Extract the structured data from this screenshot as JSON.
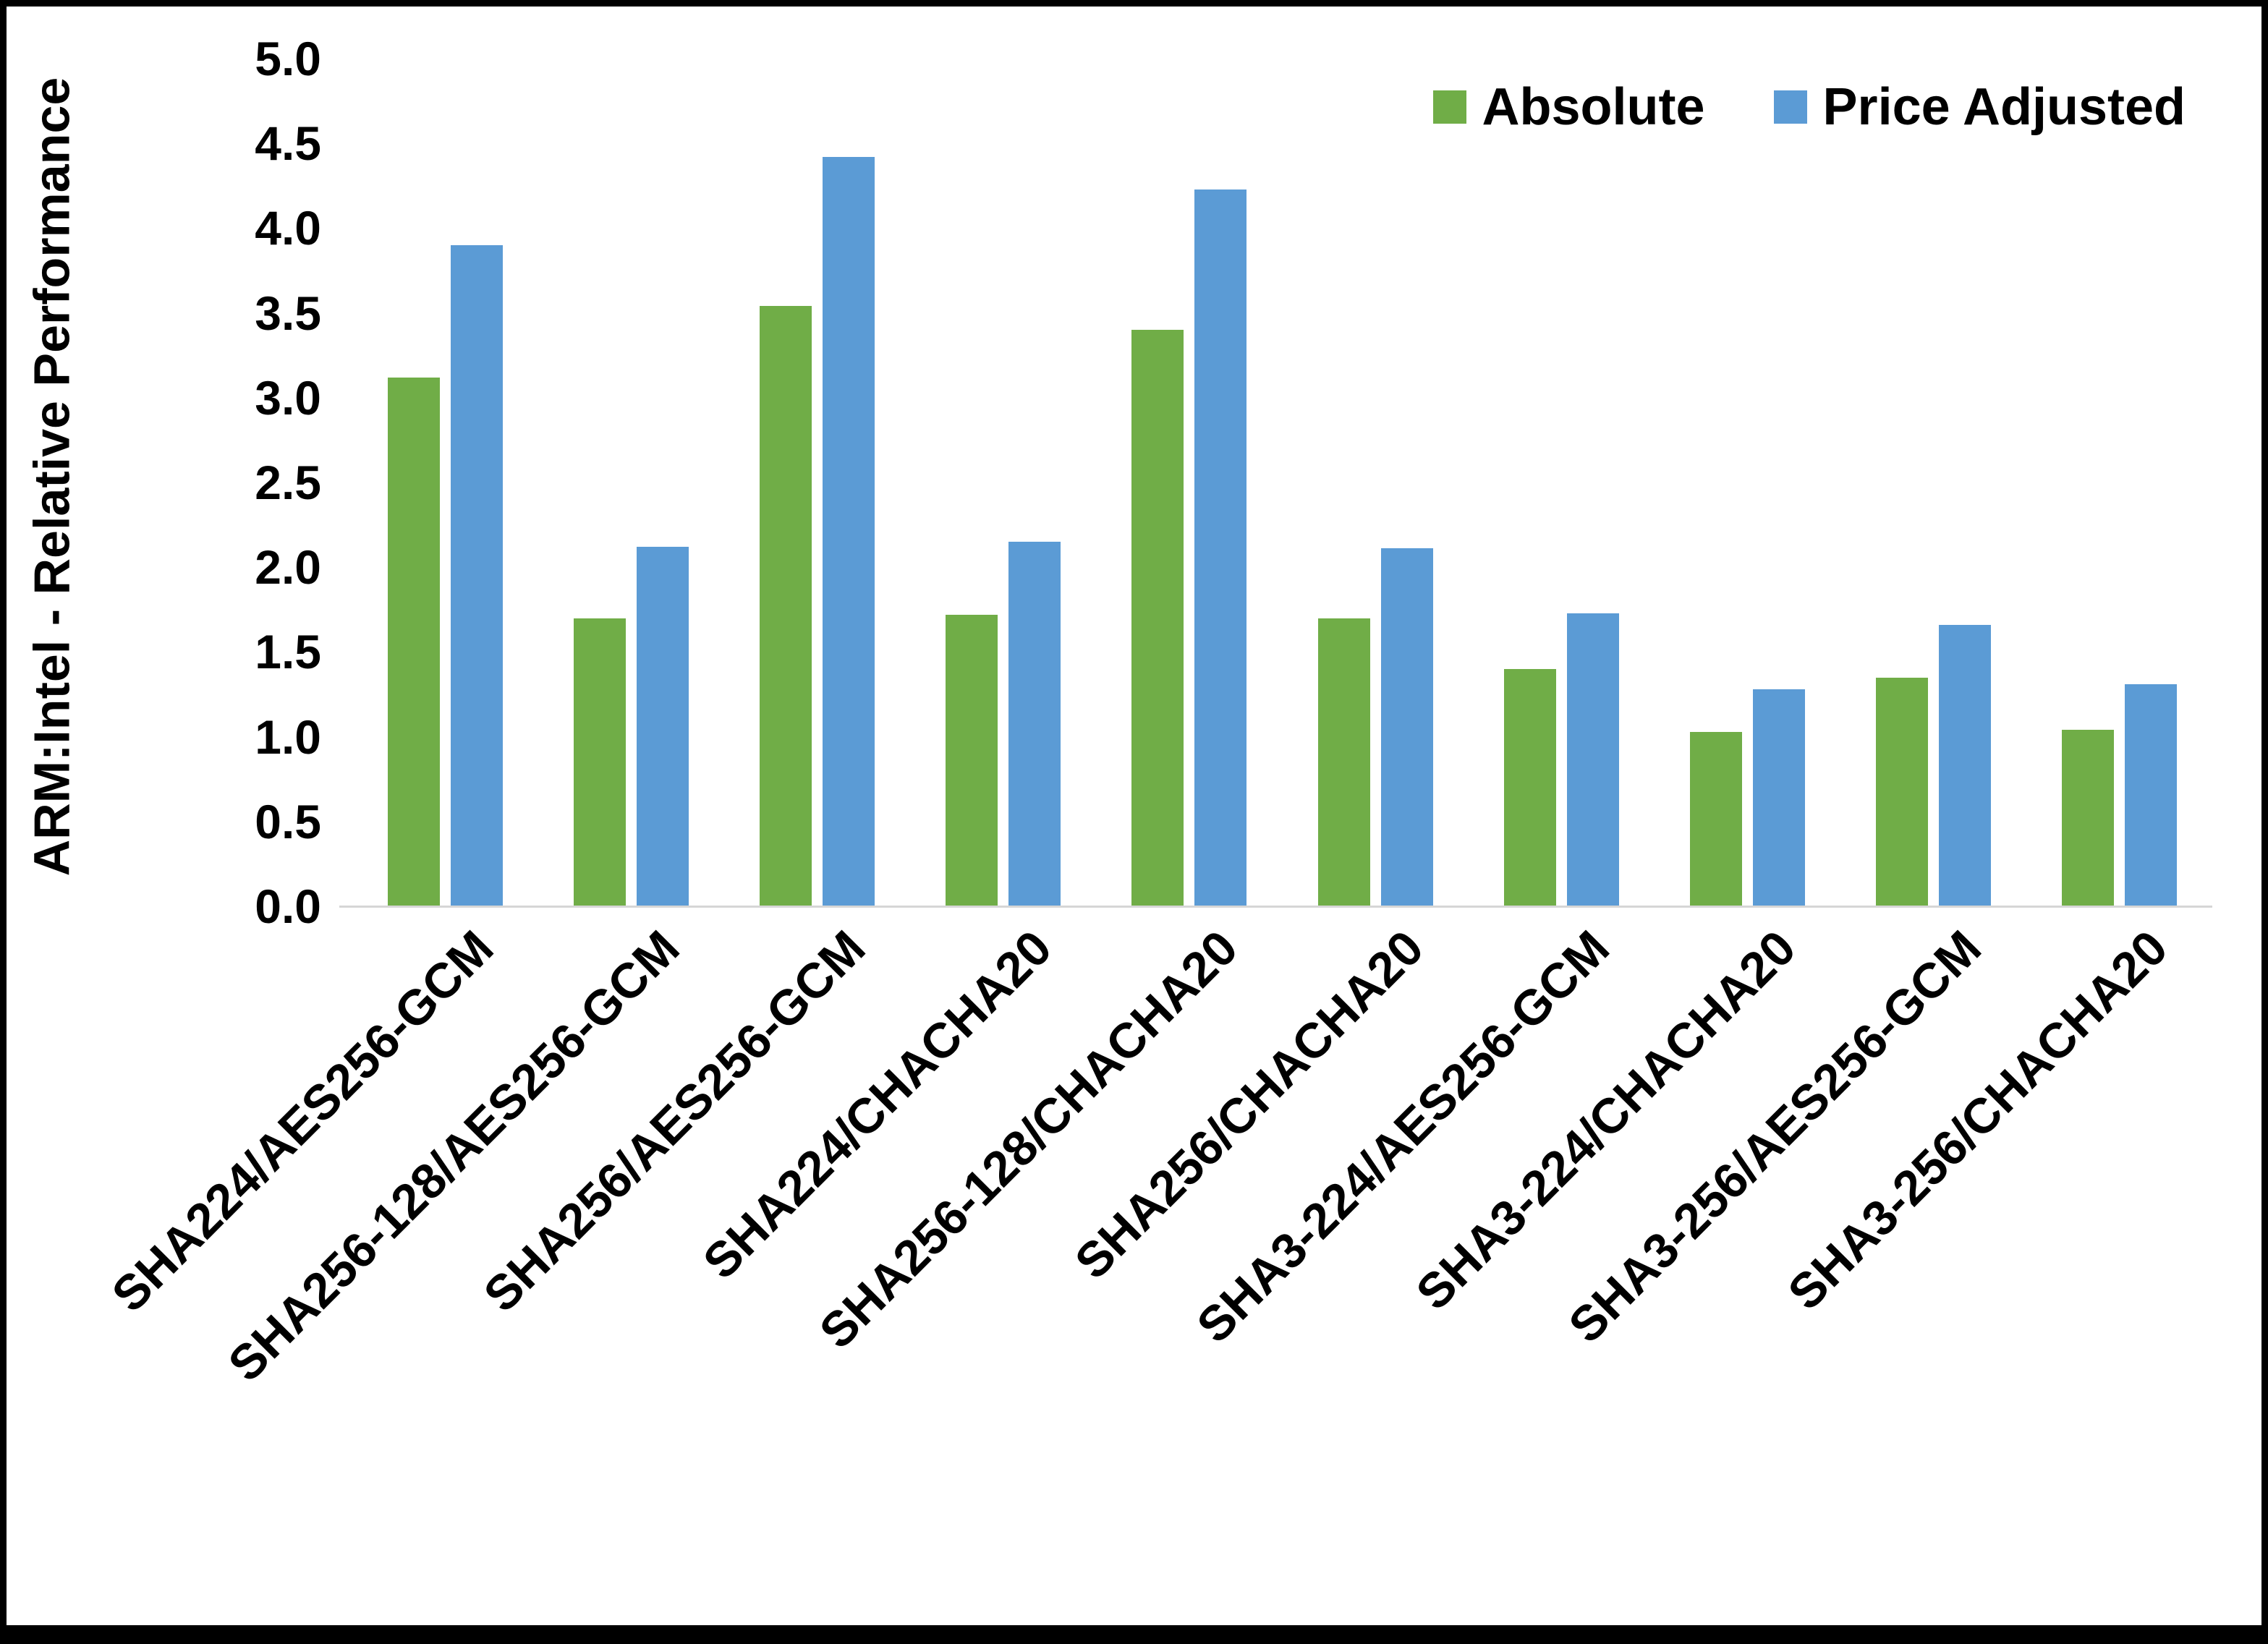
{
  "chart_data": {
    "type": "bar",
    "title": "",
    "xlabel": "",
    "ylabel": "ARM:Intel - Relative Performance",
    "ylim": [
      0,
      5
    ],
    "ytick_step": 0.5,
    "ytick_decimals": 1,
    "grid": false,
    "legend_position": "top-right",
    "categories": [
      "SHA224/AES256-GCM",
      "SHA256-128/AES256-GCM",
      "SHA256/AES256-GCM",
      "SHA224/CHACHA20",
      "SHA256-128/CHACHA20",
      "SHA256/CHACHA20",
      "SHA3-224/AES256-GCM",
      "SHA3-224/CHACHA20",
      "SHA3-256/AES256-GCM",
      "SHA3-256/CHACHA20"
    ],
    "series": [
      {
        "name": "Absolute",
        "color": "#70AD47",
        "values": [
          3.12,
          1.7,
          3.54,
          1.72,
          3.4,
          1.7,
          1.4,
          1.03,
          1.35,
          1.04
        ]
      },
      {
        "name": "Price Adjusted",
        "color": "#5B9BD5",
        "values": [
          3.9,
          2.12,
          4.42,
          2.15,
          4.23,
          2.11,
          1.73,
          1.28,
          1.66,
          1.31
        ]
      }
    ],
    "colors": {
      "axis_line": "#D6D6D6",
      "text": "#000000",
      "background": "#FFFFFF",
      "border": "#000000"
    }
  }
}
